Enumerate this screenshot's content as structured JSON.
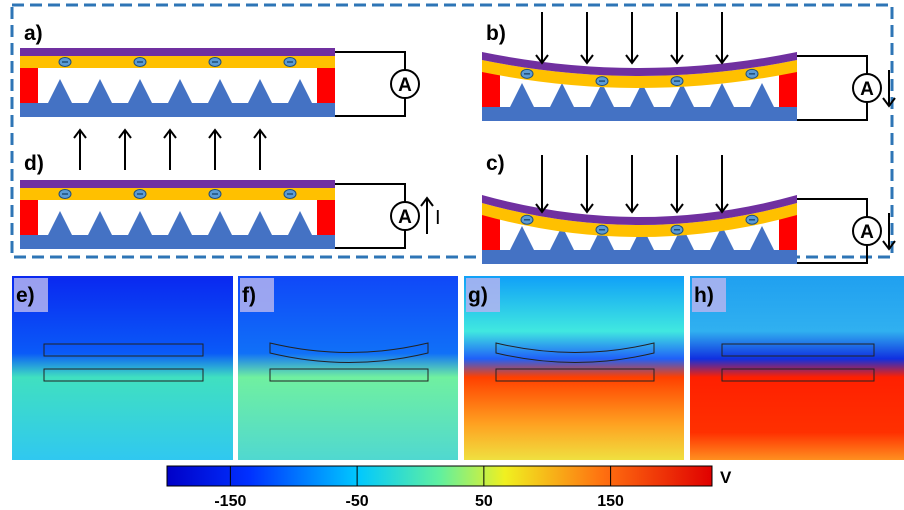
{
  "panels": [
    {
      "label": "a)"
    },
    {
      "label": "b)"
    },
    {
      "label": "d)"
    },
    {
      "label": "c)"
    },
    {
      "label": "e)"
    },
    {
      "label": "f)"
    },
    {
      "label": "g)"
    },
    {
      "label": "h)"
    }
  ],
  "ammeter_label": "A",
  "current_label": "I",
  "colorbar": {
    "lim": [
      -200,
      230
    ],
    "ticks": [
      -150,
      -50,
      50,
      150
    ],
    "unit": "V"
  }
}
